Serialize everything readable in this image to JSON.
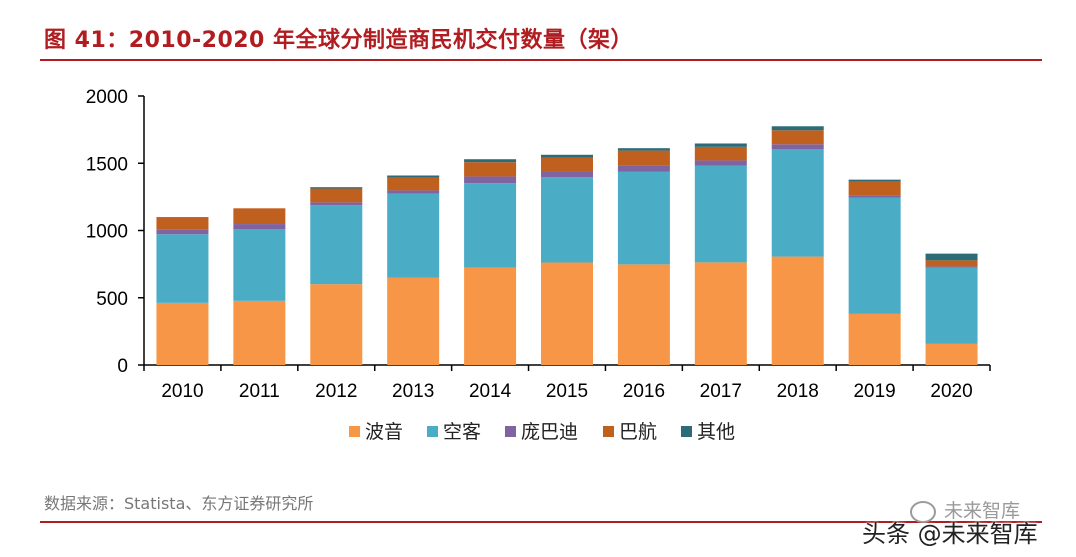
{
  "title": "图 41：2010-2020 年全球分制造商民机交付数量（架）",
  "source": "数据来源：Statista、东方证券研究所",
  "watermark_top": "未来智库",
  "watermark_bottom": "头条 @未来智库",
  "colors": {
    "title": "#b01c20",
    "boeing": "#f79646",
    "airbus": "#4bacc6",
    "bombardier": "#8064a2",
    "embraer": "#c0601f",
    "other": "#2e6b78"
  },
  "chart_data": {
    "type": "bar",
    "stacked": true,
    "categories": [
      "2010",
      "2011",
      "2012",
      "2013",
      "2014",
      "2015",
      "2016",
      "2017",
      "2018",
      "2019",
      "2020"
    ],
    "series": [
      {
        "name": "波音",
        "color": "#f79646",
        "values": [
          462,
          477,
          601,
          648,
          723,
          762,
          748,
          763,
          806,
          380,
          157
        ]
      },
      {
        "name": "空客",
        "color": "#4bacc6",
        "values": [
          510,
          534,
          588,
          626,
          629,
          635,
          688,
          718,
          800,
          863,
          566
        ]
      },
      {
        "name": "庞巴迪",
        "color": "#8064a2",
        "values": [
          37,
          37,
          20,
          24,
          50,
          45,
          50,
          40,
          35,
          20,
          10
        ]
      },
      {
        "name": "巴航",
        "color": "#c0601f",
        "values": [
          91,
          117,
          103,
          94,
          106,
          101,
          108,
          101,
          104,
          100,
          45
        ]
      },
      {
        "name": "其他",
        "color": "#2e6b78",
        "values": [
          0,
          0,
          10,
          17,
          22,
          20,
          18,
          25,
          30,
          15,
          50
        ]
      }
    ],
    "ylim": [
      0,
      2000
    ],
    "yticks": [
      "0",
      "500",
      "1000",
      "1500",
      "2000"
    ],
    "legend_position": "bottom",
    "grid": false
  }
}
